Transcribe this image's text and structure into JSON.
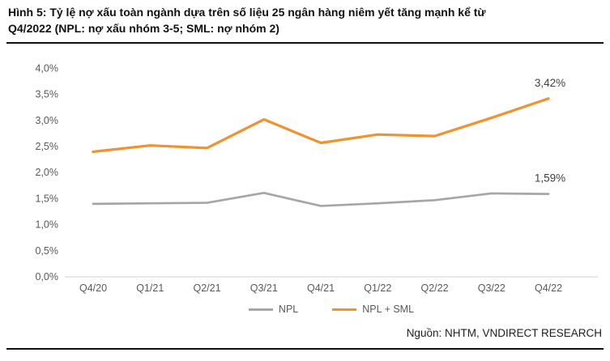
{
  "header": {
    "title": "Hình 5: Tỷ lệ nợ xấu toàn ngành dựa trên số liệu 25 ngân hàng niêm yết tăng mạnh kể từ Q4/2022 (NPL: nợ xấu nhóm 3-5; SML: nợ nhóm 2)",
    "title_lines": [
      "Hình 5: Tỷ lệ nợ xấu toàn ngành dựa trên số liệu 25 ngân hàng niêm yết tăng mạnh kể từ",
      "Q4/2022 (NPL: nợ xấu nhóm 3-5; SML: nợ nhóm 2)"
    ]
  },
  "chart_data": {
    "type": "line",
    "categories": [
      "Q4/20",
      "Q1/21",
      "Q2/21",
      "Q3/21",
      "Q4/21",
      "Q1/22",
      "Q2/22",
      "Q3/22",
      "Q4/22"
    ],
    "series": [
      {
        "name": "NPL",
        "color": "#a6a6a6",
        "values": [
          1.4,
          1.41,
          1.42,
          1.61,
          1.36,
          1.41,
          1.47,
          1.6,
          1.59
        ],
        "end_label": "1,59%"
      },
      {
        "name": "NPL + SML",
        "color": "#f0922d",
        "values": [
          2.4,
          2.52,
          2.47,
          3.02,
          2.57,
          2.73,
          2.7,
          3.05,
          3.42
        ],
        "end_label": "3,42%"
      }
    ],
    "y_ticks": {
      "values": [
        0,
        0.5,
        1.0,
        1.5,
        2.0,
        2.5,
        3.0,
        3.5,
        4.0
      ],
      "labels": [
        "0,0%",
        "0,5%",
        "1,0%",
        "1,5%",
        "2,0%",
        "2,5%",
        "3,0%",
        "3,5%",
        "4,0%"
      ]
    },
    "ylim": [
      0,
      4
    ],
    "grid": "off",
    "legend_position": "bottom-center",
    "axis_color": "#d9d9d9",
    "tick_color": "#595959",
    "data_label_color": "#404040"
  },
  "footer": {
    "source": "Nguồn: NHTM, VNDIRECT RESEARCH"
  }
}
